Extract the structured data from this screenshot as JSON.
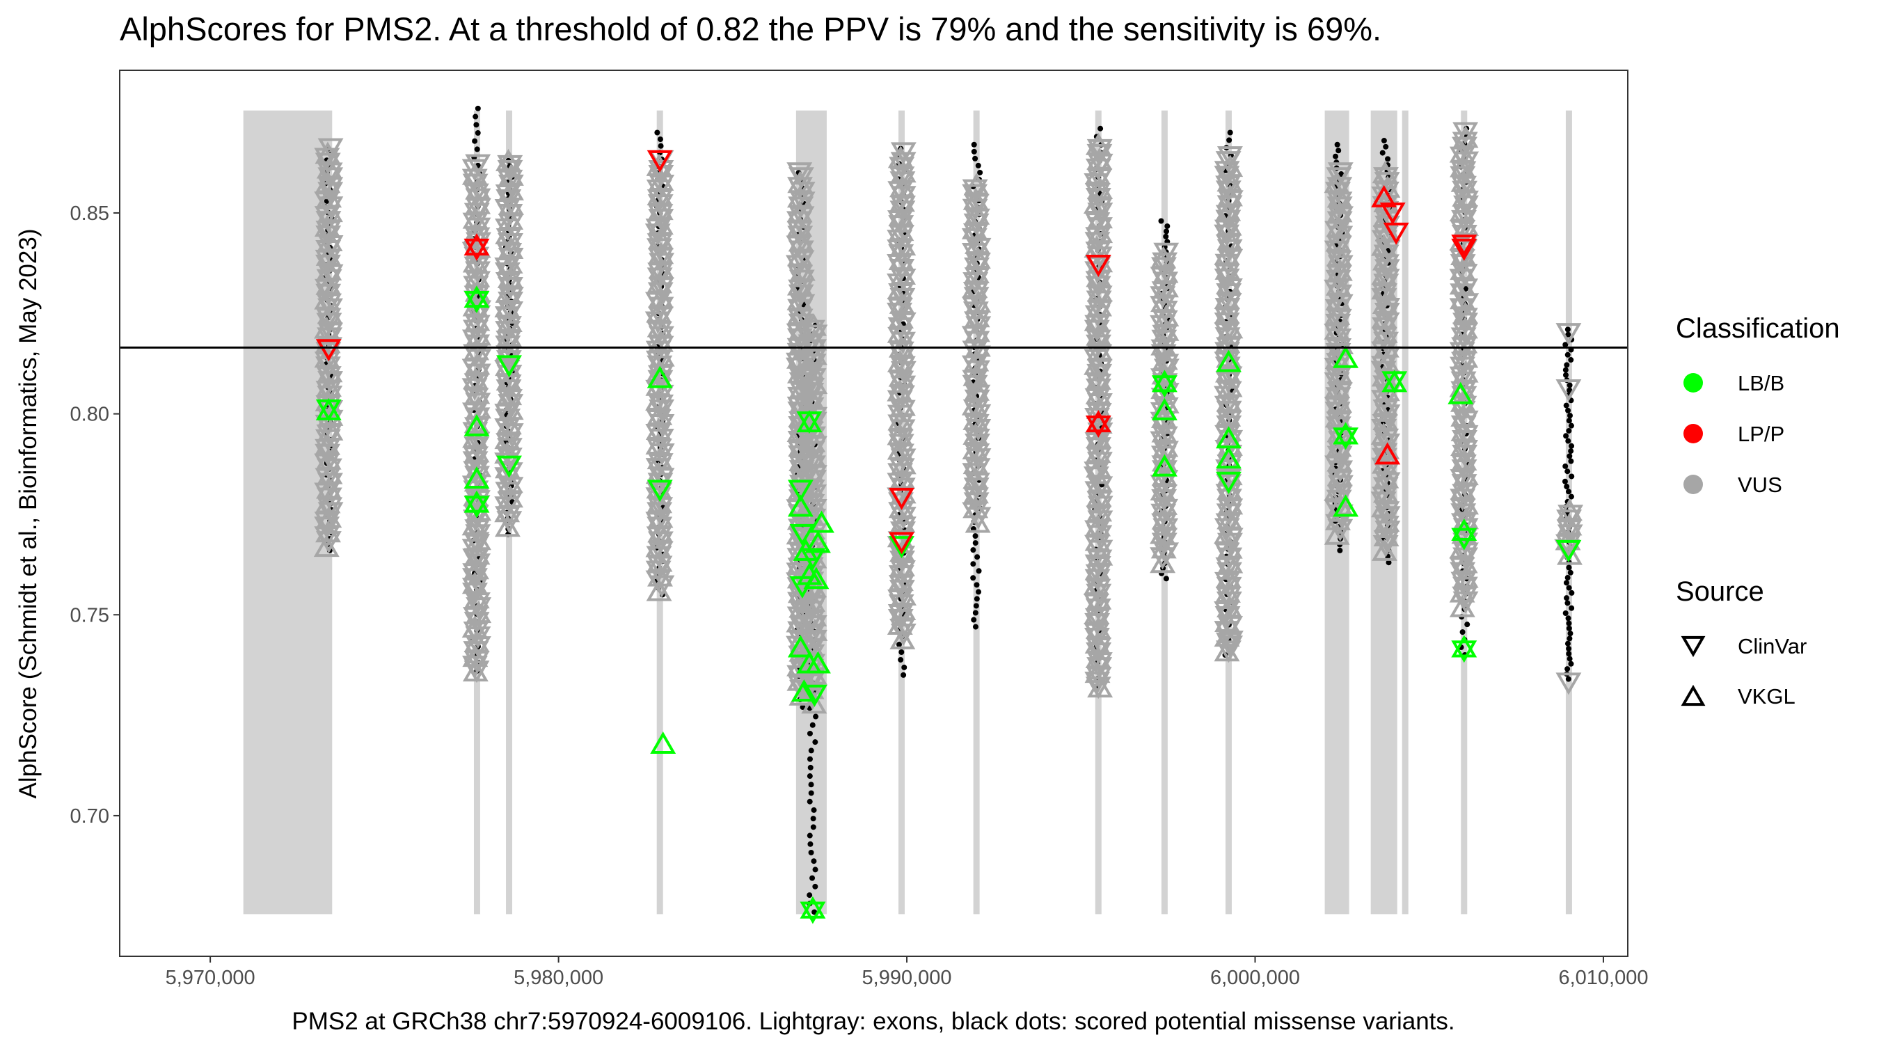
{
  "title": "AlphScores for PMS2. At a threshold of 0.82 the PPV is 79% and the sensitivity is 69%.",
  "colors": {
    "lbb": "#00ff00",
    "lpp": "#ff0000",
    "vus": "#a6a6a6",
    "exon": "#d3d3d3",
    "background_dot": "#000000"
  },
  "chart_data": {
    "type": "scatter",
    "title": "AlphScores for PMS2. At a threshold of 0.82 the PPV is 79% and the sensitivity is 69%.",
    "xlabel": "PMS2 at GRCh38 chr7:5970924-6009106. Lightgray: exons, black dots: scored potential missense variants.",
    "ylabel": "AlphScore (Schmidt et al.,  Bioinformatics, May 2023)",
    "xlim": [
      5967400,
      6010700
    ],
    "ylim": [
      0.665,
      0.8855
    ],
    "x_ticks": [
      5970000,
      5980000,
      5990000,
      6000000,
      6010000
    ],
    "x_tick_labels": [
      "5,970,000",
      "5,980,000",
      "5,990,000",
      "6,000,000",
      "6,010,000"
    ],
    "y_ticks": [
      0.7,
      0.75,
      0.8,
      0.85
    ],
    "y_tick_labels": [
      "0.70",
      "0.75",
      "0.80",
      "0.85"
    ],
    "threshold": 0.8165,
    "grid": false,
    "legend": {
      "position": "right",
      "classification_title": "Classification",
      "classification_items": [
        {
          "label": "LB/B",
          "color": "#00ff00"
        },
        {
          "label": "LP/P",
          "color": "#ff0000"
        },
        {
          "label": "VUS",
          "color": "#a6a6a6"
        }
      ],
      "source_title": "Source",
      "source_items": [
        {
          "label": "ClinVar",
          "shape": "triangle-down"
        },
        {
          "label": "VKGL",
          "shape": "triangle-up"
        }
      ]
    },
    "exons": [
      [
        5970950,
        5973500
      ],
      [
        5977580,
        5977740
      ],
      [
        5978520,
        5978640
      ],
      [
        5982860,
        5982960
      ],
      [
        5986820,
        5987700
      ],
      [
        5989800,
        5989900
      ],
      [
        5991950,
        5992050
      ],
      [
        5995450,
        5995550
      ],
      [
        5997350,
        5997450
      ],
      [
        5999190,
        5999290
      ],
      [
        6002000,
        6002700
      ],
      [
        6003320,
        6004080
      ],
      [
        6004260,
        6004360
      ],
      [
        6005910,
        6006090
      ],
      [
        6008960,
        6009060
      ]
    ],
    "background_columns": [
      {
        "x": 5973400,
        "ymin": 0.766,
        "ymax": 0.866
      },
      {
        "x": 5977650,
        "ymin": 0.736,
        "ymax": 0.876
      },
      {
        "x": 5978580,
        "ymin": 0.77,
        "ymax": 0.863
      },
      {
        "x": 5982910,
        "ymin": 0.755,
        "ymax": 0.87
      },
      {
        "x": 5986950,
        "ymin": 0.727,
        "ymax": 0.86
      },
      {
        "x": 5987300,
        "ymin": 0.676,
        "ymax": 0.822
      },
      {
        "x": 5989850,
        "ymin": 0.735,
        "ymax": 0.866
      },
      {
        "x": 5992000,
        "ymin": 0.747,
        "ymax": 0.867
      },
      {
        "x": 5995500,
        "ymin": 0.732,
        "ymax": 0.871
      },
      {
        "x": 5997400,
        "ymin": 0.759,
        "ymax": 0.848
      },
      {
        "x": 5999240,
        "ymin": 0.74,
        "ymax": 0.87
      },
      {
        "x": 6002400,
        "ymin": 0.766,
        "ymax": 0.867
      },
      {
        "x": 6003750,
        "ymin": 0.763,
        "ymax": 0.868
      },
      {
        "x": 6006000,
        "ymin": 0.74,
        "ymax": 0.871
      },
      {
        "x": 6009000,
        "ymin": 0.734,
        "ymax": 0.821
      }
    ],
    "vus_columns": [
      {
        "x": 5973400,
        "ymin": 0.767,
        "ymax": 0.866
      },
      {
        "x": 5977650,
        "ymin": 0.736,
        "ymax": 0.862
      },
      {
        "x": 5978580,
        "ymin": 0.772,
        "ymax": 0.863
      },
      {
        "x": 5982910,
        "ymin": 0.756,
        "ymax": 0.863
      },
      {
        "x": 5986950,
        "ymin": 0.73,
        "ymax": 0.86
      },
      {
        "x": 5987300,
        "ymin": 0.728,
        "ymax": 0.822
      },
      {
        "x": 5989850,
        "ymin": 0.744,
        "ymax": 0.865
      },
      {
        "x": 5992000,
        "ymin": 0.773,
        "ymax": 0.857
      },
      {
        "x": 5995500,
        "ymin": 0.732,
        "ymax": 0.867
      },
      {
        "x": 5997400,
        "ymin": 0.763,
        "ymax": 0.84
      },
      {
        "x": 5999240,
        "ymin": 0.741,
        "ymax": 0.864
      },
      {
        "x": 6002400,
        "ymin": 0.77,
        "ymax": 0.86
      },
      {
        "x": 6003750,
        "ymin": 0.766,
        "ymax": 0.86
      },
      {
        "x": 6006000,
        "ymin": 0.752,
        "ymax": 0.87
      },
      {
        "x": 6009000,
        "ymin": 0.765,
        "ymax": 0.776
      }
    ],
    "vus_outliers": [
      {
        "x": 5977650,
        "y": 0.736
      },
      {
        "x": 5977650,
        "y": 0.768
      },
      {
        "x": 5977650,
        "y": 0.764
      },
      {
        "x": 5995500,
        "y": 0.732
      },
      {
        "x": 5995500,
        "y": 0.762
      },
      {
        "x": 5999240,
        "y": 0.741
      },
      {
        "x": 5999240,
        "y": 0.743
      },
      {
        "x": 6009000,
        "y": 0.82
      },
      {
        "x": 6009000,
        "y": 0.806
      },
      {
        "x": 6009000,
        "y": 0.733
      }
    ],
    "series": [
      {
        "name": "LB/B",
        "color": "#00ff00",
        "points": [
          {
            "x": 5973400,
            "y": 0.801,
            "source": "ClinVar"
          },
          {
            "x": 5973400,
            "y": 0.801,
            "source": "VKGL"
          },
          {
            "x": 5977650,
            "y": 0.828,
            "source": "ClinVar"
          },
          {
            "x": 5977650,
            "y": 0.829,
            "source": "VKGL"
          },
          {
            "x": 5977650,
            "y": 0.797,
            "source": "VKGL"
          },
          {
            "x": 5977650,
            "y": 0.784,
            "source": "VKGL"
          },
          {
            "x": 5977650,
            "y": 0.777,
            "source": "ClinVar"
          },
          {
            "x": 5977650,
            "y": 0.778,
            "source": "VKGL"
          },
          {
            "x": 5978580,
            "y": 0.812,
            "source": "ClinVar"
          },
          {
            "x": 5978580,
            "y": 0.787,
            "source": "ClinVar"
          },
          {
            "x": 5982910,
            "y": 0.809,
            "source": "VKGL"
          },
          {
            "x": 5982910,
            "y": 0.781,
            "source": "ClinVar"
          },
          {
            "x": 5983000,
            "y": 0.718,
            "source": "VKGL"
          },
          {
            "x": 5987200,
            "y": 0.798,
            "source": "ClinVar"
          },
          {
            "x": 5987200,
            "y": 0.798,
            "source": "VKGL"
          },
          {
            "x": 5986950,
            "y": 0.781,
            "source": "ClinVar"
          },
          {
            "x": 5986950,
            "y": 0.777,
            "source": "VKGL"
          },
          {
            "x": 5987000,
            "y": 0.77,
            "source": "ClinVar"
          },
          {
            "x": 5987100,
            "y": 0.766,
            "source": "VKGL"
          },
          {
            "x": 5987300,
            "y": 0.764,
            "source": "ClinVar"
          },
          {
            "x": 5987200,
            "y": 0.76,
            "source": "VKGL"
          },
          {
            "x": 5987450,
            "y": 0.768,
            "source": "VKGL"
          },
          {
            "x": 5987550,
            "y": 0.773,
            "source": "VKGL"
          },
          {
            "x": 5987000,
            "y": 0.757,
            "source": "ClinVar"
          },
          {
            "x": 5987400,
            "y": 0.759,
            "source": "VKGL"
          },
          {
            "x": 5986950,
            "y": 0.742,
            "source": "VKGL"
          },
          {
            "x": 5987200,
            "y": 0.738,
            "source": "VKGL"
          },
          {
            "x": 5987450,
            "y": 0.738,
            "source": "VKGL"
          },
          {
            "x": 5987050,
            "y": 0.731,
            "source": "VKGL"
          },
          {
            "x": 5987350,
            "y": 0.73,
            "source": "ClinVar"
          },
          {
            "x": 5987300,
            "y": 0.676,
            "source": "ClinVar"
          },
          {
            "x": 5987300,
            "y": 0.677,
            "source": "VKGL"
          },
          {
            "x": 5989850,
            "y": 0.767,
            "source": "ClinVar"
          },
          {
            "x": 5997400,
            "y": 0.808,
            "source": "VKGL"
          },
          {
            "x": 5997400,
            "y": 0.807,
            "source": "ClinVar"
          },
          {
            "x": 5997400,
            "y": 0.801,
            "source": "VKGL"
          },
          {
            "x": 5997400,
            "y": 0.787,
            "source": "VKGL"
          },
          {
            "x": 5999240,
            "y": 0.813,
            "source": "VKGL"
          },
          {
            "x": 5999240,
            "y": 0.794,
            "source": "VKGL"
          },
          {
            "x": 5999240,
            "y": 0.789,
            "source": "VKGL"
          },
          {
            "x": 5999240,
            "y": 0.783,
            "source": "ClinVar"
          },
          {
            "x": 6002600,
            "y": 0.814,
            "source": "VKGL"
          },
          {
            "x": 6002600,
            "y": 0.794,
            "source": "ClinVar"
          },
          {
            "x": 6002600,
            "y": 0.795,
            "source": "VKGL"
          },
          {
            "x": 6002600,
            "y": 0.777,
            "source": "VKGL"
          },
          {
            "x": 6004000,
            "y": 0.808,
            "source": "ClinVar"
          },
          {
            "x": 6004000,
            "y": 0.808,
            "source": "VKGL"
          },
          {
            "x": 6005900,
            "y": 0.805,
            "source": "VKGL"
          },
          {
            "x": 6006000,
            "y": 0.771,
            "source": "VKGL"
          },
          {
            "x": 6006000,
            "y": 0.769,
            "source": "ClinVar"
          },
          {
            "x": 6006000,
            "y": 0.741,
            "source": "ClinVar"
          },
          {
            "x": 6006000,
            "y": 0.742,
            "source": "VKGL"
          },
          {
            "x": 6009000,
            "y": 0.766,
            "source": "ClinVar"
          }
        ]
      },
      {
        "name": "LP/P",
        "color": "#ff0000",
        "points": [
          {
            "x": 5973400,
            "y": 0.816,
            "source": "ClinVar"
          },
          {
            "x": 5977650,
            "y": 0.841,
            "source": "ClinVar"
          },
          {
            "x": 5977650,
            "y": 0.842,
            "source": "VKGL"
          },
          {
            "x": 5982910,
            "y": 0.863,
            "source": "ClinVar"
          },
          {
            "x": 5989850,
            "y": 0.779,
            "source": "ClinVar"
          },
          {
            "x": 5989850,
            "y": 0.768,
            "source": "ClinVar"
          },
          {
            "x": 5995500,
            "y": 0.837,
            "source": "ClinVar"
          },
          {
            "x": 5995500,
            "y": 0.797,
            "source": "ClinVar"
          },
          {
            "x": 5995500,
            "y": 0.798,
            "source": "VKGL"
          },
          {
            "x": 6003700,
            "y": 0.854,
            "source": "VKGL"
          },
          {
            "x": 6003950,
            "y": 0.85,
            "source": "ClinVar"
          },
          {
            "x": 6004050,
            "y": 0.845,
            "source": "ClinVar"
          },
          {
            "x": 6003800,
            "y": 0.79,
            "source": "VKGL"
          },
          {
            "x": 6006000,
            "y": 0.842,
            "source": "ClinVar"
          },
          {
            "x": 6006000,
            "y": 0.841,
            "source": "ClinVar"
          }
        ]
      }
    ]
  }
}
